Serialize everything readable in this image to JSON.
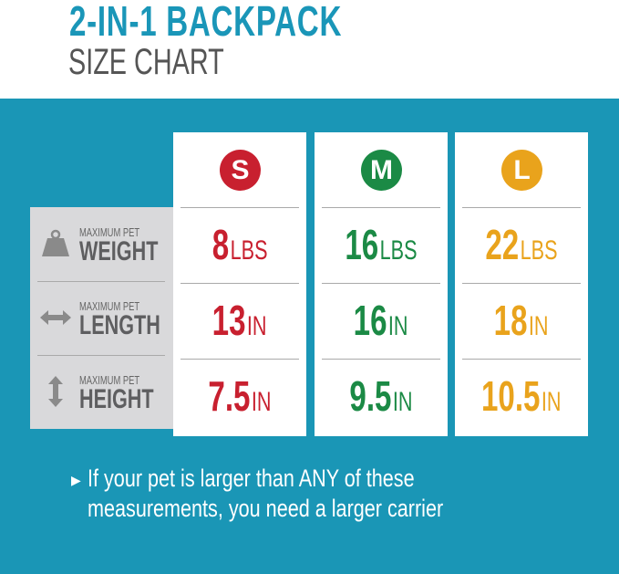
{
  "header": {
    "title": "2-IN-1 BACKPACK",
    "subtitle": "SIZE CHART"
  },
  "colors": {
    "teal": "#1a96b6",
    "small": "#c8202f",
    "medium": "#1b8a45",
    "large": "#e9a31c"
  },
  "rows": [
    {
      "icon": "weight-icon",
      "small_label": "MAXIMUM PET",
      "label": "WEIGHT"
    },
    {
      "icon": "horizontal-arrow-icon",
      "small_label": "MAXIMUM PET",
      "label": "LENGTH"
    },
    {
      "icon": "vertical-arrow-icon",
      "small_label": "MAXIMUM PET",
      "label": "HEIGHT"
    }
  ],
  "sizes": [
    {
      "badge": "S",
      "values": [
        {
          "num": "8",
          "unit": "LBS"
        },
        {
          "num": "13",
          "unit": "IN"
        },
        {
          "num": "7.5",
          "unit": "IN"
        }
      ]
    },
    {
      "badge": "M",
      "values": [
        {
          "num": "16",
          "unit": "LBS"
        },
        {
          "num": "16",
          "unit": "IN"
        },
        {
          "num": "9.5",
          "unit": "IN"
        }
      ]
    },
    {
      "badge": "L",
      "values": [
        {
          "num": "22",
          "unit": "LBS"
        },
        {
          "num": "18",
          "unit": "IN"
        },
        {
          "num": "10.5",
          "unit": "IN"
        }
      ]
    }
  ],
  "note": "If your pet is larger than ANY of these measurements, you need a larger carrier"
}
